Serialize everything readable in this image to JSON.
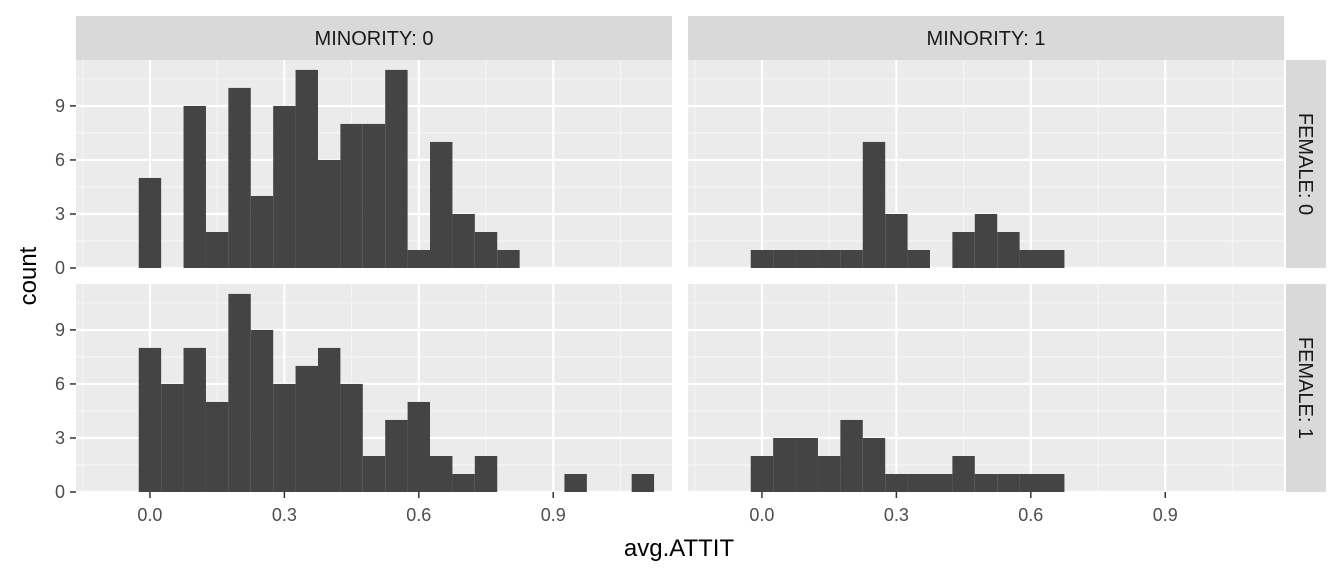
{
  "chart_data": {
    "type": "bar",
    "subtype": "faceted-histogram",
    "xlabel": "avg.ATTIT",
    "ylabel": "count",
    "binwidth": 0.05,
    "xlim": [
      -0.165,
      1.165
    ],
    "ylim": [
      0,
      11.55
    ],
    "x_ticks": [
      "0.0",
      "0.3",
      "0.6",
      "0.9"
    ],
    "y_ticks": [
      "0",
      "3",
      "6",
      "9"
    ],
    "grid": true,
    "col_labels": [
      "MINORITY: 0",
      "MINORITY: 1"
    ],
    "row_labels": [
      "FEMALE: 0",
      "FEMALE: 1"
    ],
    "bin_centers": [
      0.0,
      0.05,
      0.1,
      0.15,
      0.2,
      0.25,
      0.3,
      0.35,
      0.4,
      0.45,
      0.5,
      0.55,
      0.6,
      0.65,
      0.7,
      0.75,
      0.8,
      0.85,
      0.9,
      0.95,
      1.0,
      1.05,
      1.1
    ],
    "panels": [
      {
        "row": 0,
        "col": 0,
        "minority": "0",
        "female": "0",
        "counts": [
          5,
          0,
          9,
          2,
          10,
          4,
          9,
          11,
          6,
          8,
          8,
          11,
          1,
          7,
          3,
          2,
          1,
          0,
          0,
          0,
          0,
          0,
          0
        ]
      },
      {
        "row": 0,
        "col": 1,
        "minority": "1",
        "female": "0",
        "counts": [
          1,
          1,
          1,
          1,
          1,
          7,
          3,
          1,
          0,
          2,
          3,
          2,
          1,
          1,
          0,
          0,
          0,
          0,
          0,
          0,
          0,
          0,
          0
        ]
      },
      {
        "row": 1,
        "col": 0,
        "minority": "0",
        "female": "1",
        "counts": [
          8,
          6,
          8,
          5,
          11,
          9,
          6,
          7,
          8,
          6,
          2,
          4,
          5,
          2,
          1,
          2,
          0,
          0,
          0,
          1,
          0,
          0,
          1
        ]
      },
      {
        "row": 1,
        "col": 1,
        "minority": "1",
        "female": "1",
        "counts": [
          2,
          3,
          3,
          2,
          4,
          3,
          1,
          1,
          1,
          2,
          1,
          1,
          1,
          1,
          0,
          0,
          0,
          0,
          0,
          0,
          0,
          0,
          0
        ]
      }
    ],
    "colors": {
      "bar": "#444444",
      "panel_bg": "#ebebeb",
      "grid_major": "#ffffff",
      "grid_minor": "#f5f5f5",
      "strip_bg": "#d9d9d9"
    }
  }
}
